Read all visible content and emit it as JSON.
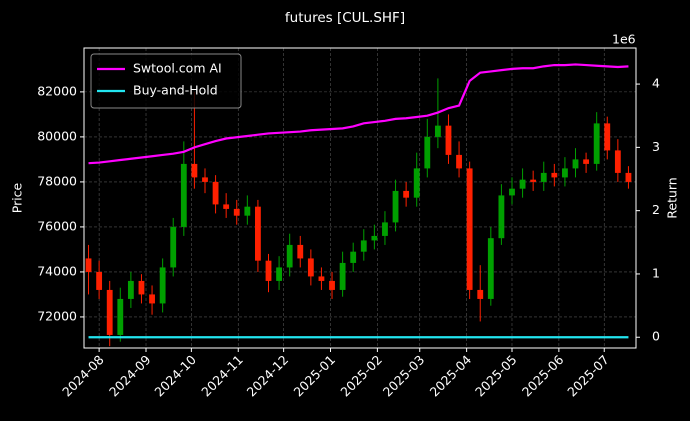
{
  "chart_data": {
    "type": "candlestick",
    "title": "futures [CUL.SHF]",
    "y_label": "Price",
    "y2_label": "Return",
    "y2_scale_label": "1e6",
    "x": [
      -7,
      0,
      7,
      14,
      21,
      28,
      35,
      42,
      49,
      56,
      63,
      70,
      77,
      84,
      91,
      98,
      105,
      112,
      119,
      126,
      133,
      140,
      147,
      154,
      161,
      168,
      175,
      182,
      189,
      196,
      203,
      210,
      217,
      224,
      231,
      238,
      245,
      252,
      259,
      266,
      273,
      280,
      287,
      294,
      301,
      308,
      315,
      322,
      329,
      336,
      343,
      350
    ],
    "open": [
      74600,
      74000,
      73200,
      71200,
      72800,
      73600,
      73000,
      72600,
      74200,
      76000,
      78800,
      78200,
      78000,
      77000,
      76800,
      76500,
      76900,
      74500,
      73600,
      74200,
      75200,
      74600,
      73800,
      73600,
      73200,
      74400,
      74900,
      75400,
      75600,
      76200,
      77600,
      77300,
      78600,
      80000,
      80500,
      79200,
      78600,
      73200,
      72800,
      75500,
      77400,
      77700,
      78100,
      78000,
      78400,
      78200,
      78600,
      79000,
      78800,
      80600,
      79400,
      78400
    ],
    "high": [
      75200,
      74500,
      73600,
      73300,
      74000,
      73900,
      73400,
      74600,
      76400,
      79800,
      82000,
      78600,
      78300,
      77500,
      77200,
      77400,
      77200,
      74800,
      74700,
      75700,
      75600,
      75000,
      74200,
      74000,
      74900,
      75300,
      75900,
      76100,
      76700,
      78100,
      78000,
      79300,
      80800,
      82600,
      81000,
      79800,
      78900,
      74300,
      76000,
      77900,
      78200,
      78600,
      78500,
      78900,
      78800,
      79100,
      79500,
      79300,
      81100,
      80900,
      79900,
      78700
    ],
    "low": [
      73000,
      72800,
      70700,
      70900,
      72400,
      72600,
      72100,
      72200,
      73800,
      75600,
      77700,
      77500,
      76600,
      76400,
      76100,
      76100,
      74000,
      73100,
      73200,
      73800,
      74200,
      73400,
      73200,
      72800,
      72900,
      74000,
      74500,
      75000,
      75200,
      75800,
      76900,
      76900,
      78200,
      79500,
      78800,
      78200,
      72800,
      71800,
      72500,
      75200,
      77000,
      77300,
      77600,
      77600,
      77800,
      77800,
      78200,
      78400,
      78500,
      79000,
      78000,
      77700
    ],
    "close": [
      74000,
      73200,
      71200,
      72800,
      73600,
      73000,
      72600,
      74200,
      76000,
      78800,
      78200,
      78000,
      77000,
      76800,
      76500,
      76900,
      74500,
      73600,
      74200,
      75200,
      74600,
      73800,
      73600,
      73200,
      74400,
      74900,
      75400,
      75600,
      76200,
      77600,
      77300,
      78600,
      80000,
      80500,
      79200,
      78600,
      73200,
      72800,
      75500,
      77400,
      77700,
      78100,
      78000,
      78400,
      78200,
      78600,
      79000,
      78800,
      80600,
      79400,
      78400,
      78000
    ],
    "up_color": "#00a000",
    "down_color": "#ff2000",
    "series": [
      {
        "name": "Swtool.com AI",
        "color": "#ff00ff",
        "axis": "y2",
        "values": [
          2.75,
          2.76,
          2.78,
          2.8,
          2.82,
          2.84,
          2.86,
          2.88,
          2.9,
          2.93,
          3.0,
          3.05,
          3.1,
          3.14,
          3.16,
          3.18,
          3.2,
          3.22,
          3.23,
          3.24,
          3.25,
          3.27,
          3.28,
          3.29,
          3.3,
          3.33,
          3.38,
          3.4,
          3.42,
          3.45,
          3.46,
          3.48,
          3.5,
          3.55,
          3.62,
          3.66,
          4.05,
          4.18,
          4.2,
          4.22,
          4.24,
          4.25,
          4.25,
          4.28,
          4.3,
          4.3,
          4.31,
          4.3,
          4.29,
          4.28,
          4.27,
          4.28
        ]
      },
      {
        "name": "Buy-and-Hold",
        "color": "#22e5f0",
        "axis": "y2",
        "values": [
          0,
          0,
          0,
          0,
          0,
          0,
          0,
          0,
          0,
          0,
          0,
          0,
          0,
          0,
          0,
          0,
          0,
          0,
          0,
          0,
          0,
          0,
          0,
          0,
          0,
          0,
          0,
          0,
          0,
          0,
          0,
          0,
          0,
          0,
          0,
          0,
          0,
          0,
          0,
          0,
          0,
          0,
          0,
          0,
          0,
          0,
          0,
          0,
          0,
          0,
          0,
          0
        ]
      }
    ],
    "xlim": [
      -10,
      355
    ],
    "xticks": [
      {
        "value": 0,
        "label": "2024-08"
      },
      {
        "value": 31,
        "label": "2024-09"
      },
      {
        "value": 61,
        "label": "2024-10"
      },
      {
        "value": 92,
        "label": "2024-11"
      },
      {
        "value": 122,
        "label": "2024-12"
      },
      {
        "value": 153,
        "label": "2025-01"
      },
      {
        "value": 184,
        "label": "2025-02"
      },
      {
        "value": 212,
        "label": "2025-03"
      },
      {
        "value": 243,
        "label": "2025-04"
      },
      {
        "value": 273,
        "label": "2025-05"
      },
      {
        "value": 304,
        "label": "2025-06"
      },
      {
        "value": 334,
        "label": "2025-07"
      }
    ],
    "ylim": [
      70620,
      83950
    ],
    "yticks": [
      72000,
      74000,
      76000,
      78000,
      80000,
      82000
    ],
    "y2lim": [
      -0.17,
      4.57
    ],
    "y2ticks": [
      0,
      1,
      2,
      3,
      4
    ],
    "grid": true,
    "legend": "upper left"
  }
}
